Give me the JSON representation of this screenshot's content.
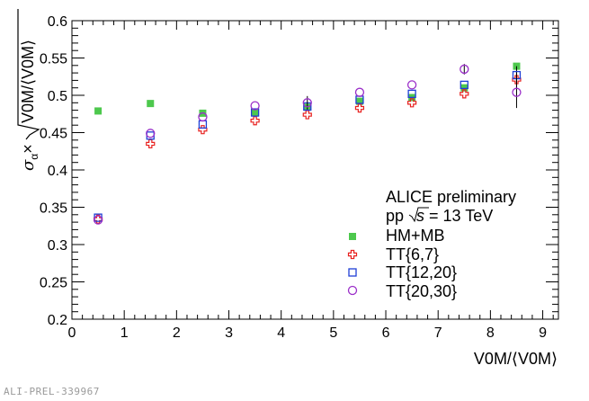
{
  "chart_data": {
    "type": "scatter",
    "xlabel": "V0M/⟨V0M⟩",
    "ylabel": "σ_α×√(V0M/⟨V0M⟩)",
    "ylabel_parts": {
      "sigma": "σ",
      "sub": "α",
      "times": "×",
      "radicand": "V0M/⟨V0M⟩"
    },
    "xlim": [
      0,
      9.3
    ],
    "ylim": [
      0.2,
      0.6
    ],
    "x_ticks": [
      "0",
      "1",
      "2",
      "3",
      "4",
      "5",
      "6",
      "7",
      "8",
      "9"
    ],
    "y_ticks": [
      "0.2",
      "0.25",
      "0.3",
      "0.35",
      "0.4",
      "0.45",
      "0.5",
      "0.55",
      "0.6"
    ],
    "annotations": [
      "ALICE preliminary",
      "pp",
      "s",
      "= 13 TeV"
    ],
    "series": [
      {
        "name": "HM+MB",
        "marker": "filled-square",
        "color": "#4dc84d",
        "x": [
          0.5,
          1.5,
          2.5,
          3.5,
          4.5,
          5.5,
          6.5,
          7.5,
          8.5
        ],
        "y": [
          0.479,
          0.489,
          0.476,
          0.477,
          0.484,
          0.492,
          0.497,
          0.51,
          0.539
        ],
        "err": [
          0,
          0,
          0,
          0,
          0,
          0,
          0,
          0,
          0
        ]
      },
      {
        "name": "TT{6,7}",
        "marker": "open-cross",
        "color": "#e8201e",
        "x": [
          0.5,
          1.5,
          2.5,
          3.5,
          4.5,
          5.5,
          6.5,
          7.5,
          8.5
        ],
        "y": [
          0.334,
          0.435,
          0.454,
          0.466,
          0.474,
          0.483,
          0.49,
          0.502,
          0.521
        ],
        "err": [
          0,
          0,
          0,
          0,
          0,
          0,
          0,
          0,
          0.012
        ]
      },
      {
        "name": "TT{12,20}",
        "marker": "open-square",
        "color": "#1f3fd6",
        "x": [
          0.5,
          1.5,
          2.5,
          3.5,
          4.5,
          5.5,
          6.5,
          7.5,
          8.5
        ],
        "y": [
          0.336,
          0.446,
          0.461,
          0.477,
          0.485,
          0.494,
          0.502,
          0.514,
          0.527
        ],
        "err": [
          0,
          0,
          0,
          0,
          0,
          0,
          0,
          0,
          0.012
        ]
      },
      {
        "name": "TT{20,30}",
        "marker": "open-circle",
        "color": "#9b2fc9",
        "x": [
          0.5,
          1.5,
          2.5,
          3.5,
          4.5,
          5.5,
          6.5,
          7.5,
          8.5
        ],
        "y": [
          0.333,
          0.449,
          0.471,
          0.486,
          0.49,
          0.504,
          0.514,
          0.535,
          0.504
        ],
        "err": [
          0,
          0,
          0,
          0,
          0.009,
          0,
          0,
          0.007,
          0.021
        ]
      }
    ],
    "legend_position": "lower-right"
  },
  "footer": "ALI-PREL-339967"
}
